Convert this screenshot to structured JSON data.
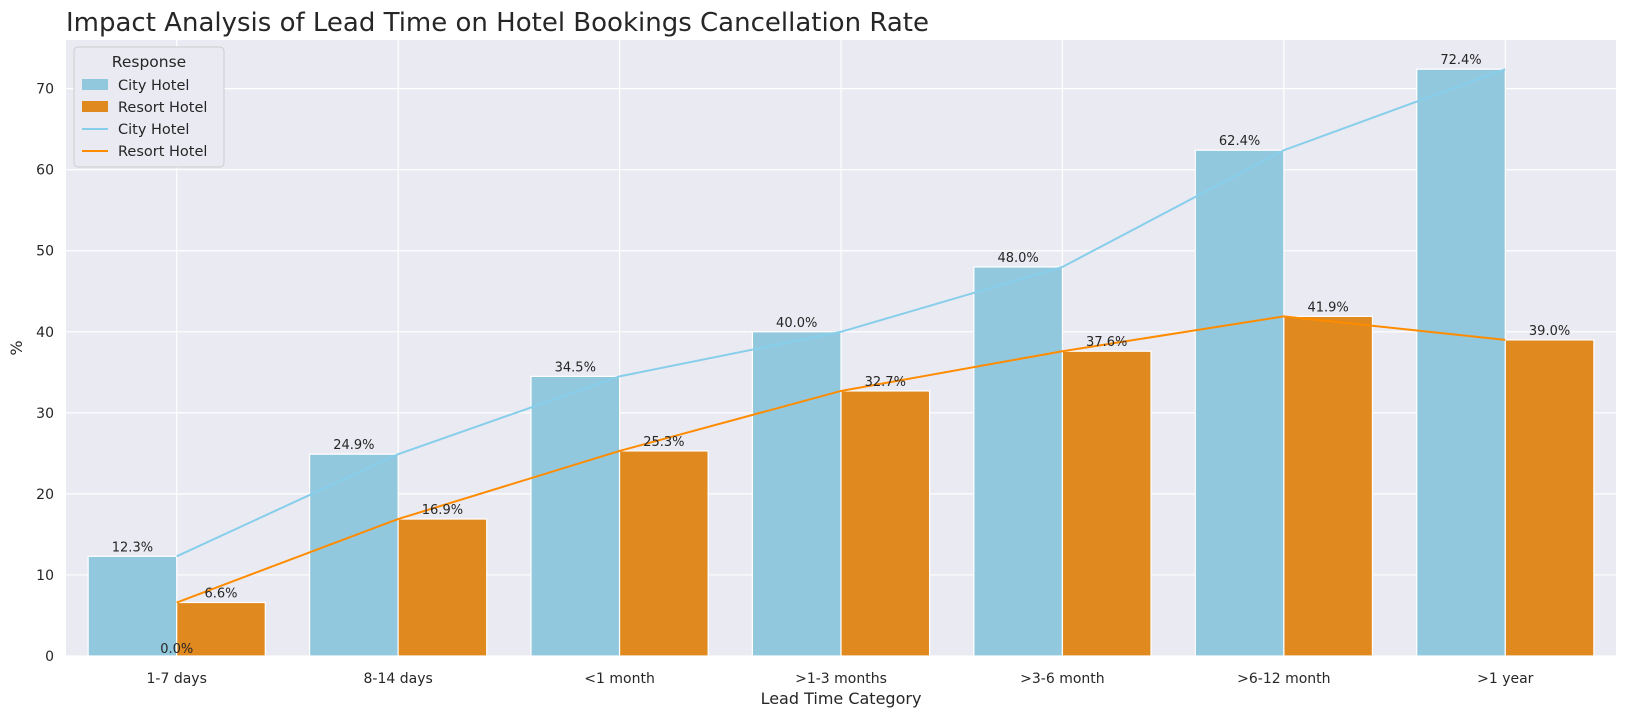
{
  "chart_data": {
    "type": "bar",
    "title": "Impact Analysis of Lead Time on Hotel Bookings Cancellation Rate",
    "xlabel": "Lead Time Category",
    "ylabel": "%",
    "ylim": [
      0,
      76
    ],
    "yticks": [
      0,
      10,
      20,
      30,
      40,
      50,
      60,
      70
    ],
    "categories": [
      "1-7 days",
      "8-14 days",
      "<1 month",
      ">1-3 months",
      ">3-6 month",
      ">6-12 month",
      ">1 year"
    ],
    "series": [
      {
        "name": "City Hotel",
        "kind": "bar",
        "color": "#87ceeb",
        "values": [
          12.3,
          24.9,
          34.5,
          40.0,
          48.0,
          62.4,
          72.4
        ],
        "labels": [
          "12.3%",
          "24.9%",
          "34.5%",
          "40.0%",
          "48.0%",
          "62.4%",
          "72.4%"
        ]
      },
      {
        "name": "Resort Hotel",
        "kind": "bar",
        "color": "#ff8c00",
        "values": [
          6.6,
          16.9,
          25.3,
          32.7,
          37.6,
          41.9,
          39.0
        ],
        "labels": [
          "6.6%",
          "16.9%",
          "25.3%",
          "32.7%",
          "37.6%",
          "41.9%",
          "39.0%"
        ]
      },
      {
        "name": "City Hotel",
        "kind": "line",
        "color": "#87ceeb",
        "values": [
          12.3,
          24.9,
          34.5,
          40.0,
          48.0,
          62.4,
          72.4
        ]
      },
      {
        "name": "Resort Hotel",
        "kind": "line",
        "color": "#ff8c00",
        "values": [
          6.6,
          16.9,
          25.3,
          32.7,
          37.6,
          41.9,
          39.0
        ]
      }
    ],
    "extra_annotation": "0.0%",
    "legend": {
      "title": "Response",
      "position": "upper-left"
    },
    "grid": true,
    "background": "#eaeaf2"
  }
}
